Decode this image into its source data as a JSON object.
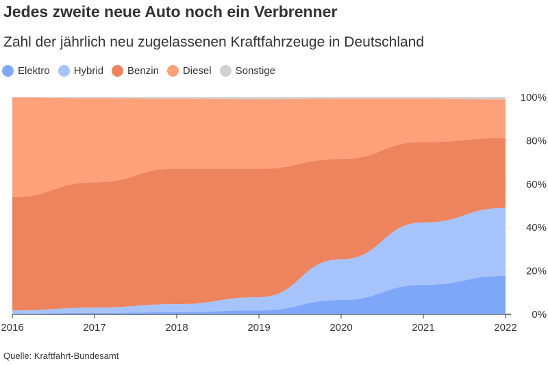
{
  "title": "Jedes zweite neue Auto noch ein Verbrenner",
  "subtitle": "Zahl der jährlich neu zugelassenen Kraftfahrzeuge in Deutschland",
  "source": "Quelle: Kraftfahrt-Bundesamt",
  "chart_data": {
    "type": "area",
    "stacked": true,
    "normalized": true,
    "legend_position": "top-left",
    "grid": true,
    "x": [
      2016,
      2017,
      2018,
      2019,
      2020,
      2021,
      2022
    ],
    "x_tick_labels": [
      "2016",
      "2017",
      "2018",
      "2019",
      "2020",
      "2021",
      "2022"
    ],
    "y_tick_labels": [
      "0%",
      "20%",
      "40%",
      "60%",
      "80%",
      "100%"
    ],
    "ylim": [
      0,
      100
    ],
    "y_axis_side": "right",
    "series": [
      {
        "name": "Elektro",
        "color": "#7fa7f9",
        "values": [
          0.3,
          0.7,
          1.0,
          1.8,
          6.7,
          13.6,
          17.7
        ]
      },
      {
        "name": "Hybrid",
        "color": "#a7c3fc",
        "values": [
          1.5,
          2.4,
          3.7,
          6.1,
          18.9,
          28.7,
          31.3
        ]
      },
      {
        "name": "Benzin",
        "color": "#ee845e",
        "values": [
          52.2,
          57.7,
          62.4,
          59.2,
          46.7,
          37.1,
          32.2
        ]
      },
      {
        "name": "Diesel",
        "color": "#fea07a",
        "values": [
          45.9,
          38.8,
          32.3,
          32.0,
          28.1,
          20.0,
          17.8
        ]
      },
      {
        "name": "Sonstige",
        "color": "#d0d0d0",
        "values": [
          0.1,
          0.4,
          0.6,
          0.9,
          0.6,
          0.6,
          1.0
        ]
      }
    ]
  }
}
